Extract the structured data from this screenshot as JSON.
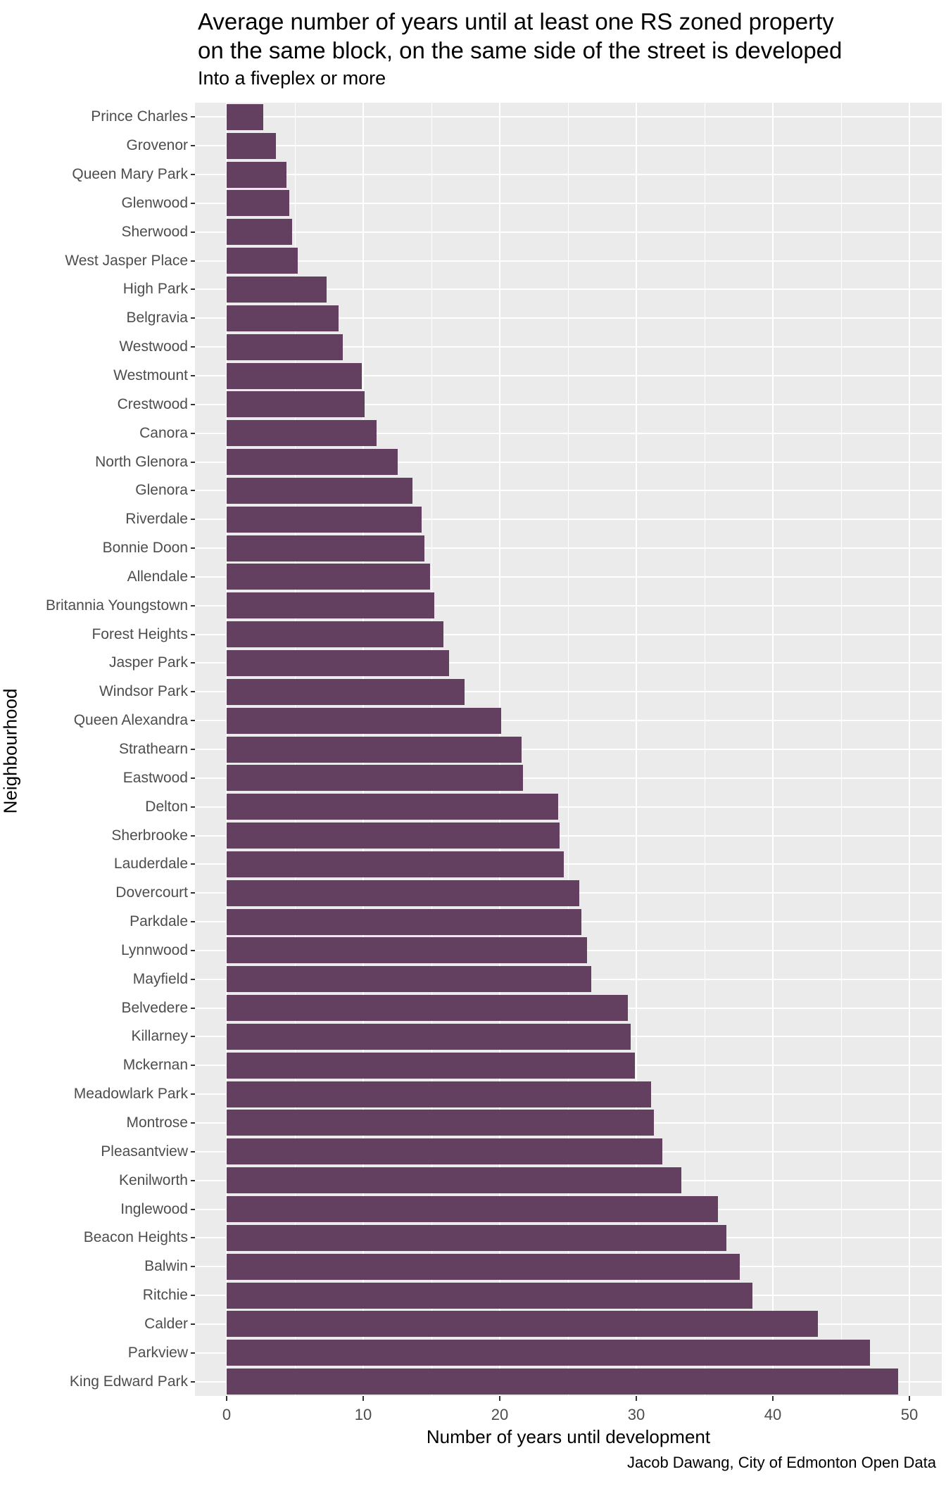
{
  "header": {
    "title_line1": "Average number of years until at least one RS zoned property",
    "title_line2": "on the same block, on the same side of the street is developed",
    "subtitle": "Into a fiveplex or more"
  },
  "chart_data": {
    "type": "bar",
    "orientation": "horizontal",
    "title": "Average number of years until at least one RS zoned property on the same block, on the same side of the street is developed",
    "subtitle": "Into a fiveplex or more",
    "xlabel": "Number of years until development",
    "ylabel": "Neighbourhood",
    "caption": "Jacob Dawang, City of Edmonton Open Data",
    "xlim": [
      0,
      50
    ],
    "x_major_ticks": [
      0,
      10,
      20,
      30,
      40,
      50
    ],
    "x_minor_gridlines": [
      5,
      15,
      25,
      35,
      45
    ],
    "legend_position": "none",
    "grid": "white major/minor vertical lines and major horizontal lines on grey panel",
    "colors": {
      "bar_fill": "#63405F",
      "panel_background": "#EBEBEB",
      "gridline": "#FFFFFF",
      "tick_label": "#4D4D4D",
      "tick_mark": "#333333",
      "title_text": "#000000"
    },
    "categories": [
      "Prince Charles",
      "Grovenor",
      "Queen Mary Park",
      "Glenwood",
      "Sherwood",
      "West Jasper Place",
      "High Park",
      "Belgravia",
      "Westwood",
      "Westmount",
      "Crestwood",
      "Canora",
      "North Glenora",
      "Glenora",
      "Riverdale",
      "Bonnie Doon",
      "Allendale",
      "Britannia Youngstown",
      "Forest Heights",
      "Jasper Park",
      "Windsor Park",
      "Queen Alexandra",
      "Strathearn",
      "Eastwood",
      "Delton",
      "Sherbrooke",
      "Lauderdale",
      "Dovercourt",
      "Parkdale",
      "Lynnwood",
      "Mayfield",
      "Belvedere",
      "Killarney",
      "Mckernan",
      "Meadowlark Park",
      "Montrose",
      "Pleasantview",
      "Kenilworth",
      "Inglewood",
      "Beacon Heights",
      "Balwin",
      "Ritchie",
      "Calder",
      "Parkview",
      "King Edward Park"
    ],
    "values": [
      2.7,
      3.6,
      4.4,
      4.6,
      4.8,
      5.2,
      7.3,
      8.2,
      8.5,
      9.9,
      10.1,
      11.0,
      12.5,
      13.6,
      14.3,
      14.5,
      14.9,
      15.2,
      15.9,
      16.3,
      17.4,
      20.1,
      21.6,
      21.7,
      24.3,
      24.4,
      24.7,
      25.8,
      26.0,
      26.4,
      26.7,
      29.4,
      29.6,
      29.9,
      31.1,
      31.3,
      31.9,
      33.3,
      36.0,
      36.6,
      37.6,
      38.5,
      43.3,
      47.1,
      49.2
    ]
  }
}
